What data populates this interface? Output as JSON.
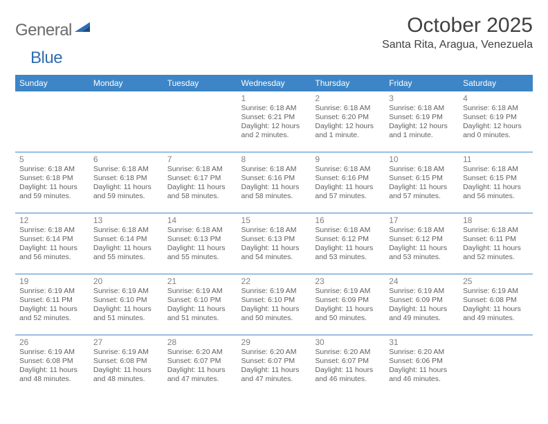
{
  "logo": {
    "text_a": "General",
    "text_b": "Blue",
    "icon_color": "#2f6db0"
  },
  "title": "October 2025",
  "location": "Santa Rita, Aragua, Venezuela",
  "colors": {
    "header_bg": "#3d85c6",
    "header_text": "#ffffff",
    "border": "#3d85c6",
    "daynum": "#808080",
    "body_text": "#606060",
    "title_text": "#404040",
    "logo_gray": "#6a6a6a",
    "logo_blue": "#2f6db0",
    "background": "#ffffff"
  },
  "day_names": [
    "Sunday",
    "Monday",
    "Tuesday",
    "Wednesday",
    "Thursday",
    "Friday",
    "Saturday"
  ],
  "layout": {
    "first_day_col": 3,
    "days_in_month": 31
  },
  "days": {
    "1": {
      "sunrise": "6:18 AM",
      "sunset": "6:21 PM",
      "daylight": "12 hours and 2 minutes."
    },
    "2": {
      "sunrise": "6:18 AM",
      "sunset": "6:20 PM",
      "daylight": "12 hours and 1 minute."
    },
    "3": {
      "sunrise": "6:18 AM",
      "sunset": "6:19 PM",
      "daylight": "12 hours and 1 minute."
    },
    "4": {
      "sunrise": "6:18 AM",
      "sunset": "6:19 PM",
      "daylight": "12 hours and 0 minutes."
    },
    "5": {
      "sunrise": "6:18 AM",
      "sunset": "6:18 PM",
      "daylight": "11 hours and 59 minutes."
    },
    "6": {
      "sunrise": "6:18 AM",
      "sunset": "6:18 PM",
      "daylight": "11 hours and 59 minutes."
    },
    "7": {
      "sunrise": "6:18 AM",
      "sunset": "6:17 PM",
      "daylight": "11 hours and 58 minutes."
    },
    "8": {
      "sunrise": "6:18 AM",
      "sunset": "6:16 PM",
      "daylight": "11 hours and 58 minutes."
    },
    "9": {
      "sunrise": "6:18 AM",
      "sunset": "6:16 PM",
      "daylight": "11 hours and 57 minutes."
    },
    "10": {
      "sunrise": "6:18 AM",
      "sunset": "6:15 PM",
      "daylight": "11 hours and 57 minutes."
    },
    "11": {
      "sunrise": "6:18 AM",
      "sunset": "6:15 PM",
      "daylight": "11 hours and 56 minutes."
    },
    "12": {
      "sunrise": "6:18 AM",
      "sunset": "6:14 PM",
      "daylight": "11 hours and 56 minutes."
    },
    "13": {
      "sunrise": "6:18 AM",
      "sunset": "6:14 PM",
      "daylight": "11 hours and 55 minutes."
    },
    "14": {
      "sunrise": "6:18 AM",
      "sunset": "6:13 PM",
      "daylight": "11 hours and 55 minutes."
    },
    "15": {
      "sunrise": "6:18 AM",
      "sunset": "6:13 PM",
      "daylight": "11 hours and 54 minutes."
    },
    "16": {
      "sunrise": "6:18 AM",
      "sunset": "6:12 PM",
      "daylight": "11 hours and 53 minutes."
    },
    "17": {
      "sunrise": "6:18 AM",
      "sunset": "6:12 PM",
      "daylight": "11 hours and 53 minutes."
    },
    "18": {
      "sunrise": "6:18 AM",
      "sunset": "6:11 PM",
      "daylight": "11 hours and 52 minutes."
    },
    "19": {
      "sunrise": "6:19 AM",
      "sunset": "6:11 PM",
      "daylight": "11 hours and 52 minutes."
    },
    "20": {
      "sunrise": "6:19 AM",
      "sunset": "6:10 PM",
      "daylight": "11 hours and 51 minutes."
    },
    "21": {
      "sunrise": "6:19 AM",
      "sunset": "6:10 PM",
      "daylight": "11 hours and 51 minutes."
    },
    "22": {
      "sunrise": "6:19 AM",
      "sunset": "6:10 PM",
      "daylight": "11 hours and 50 minutes."
    },
    "23": {
      "sunrise": "6:19 AM",
      "sunset": "6:09 PM",
      "daylight": "11 hours and 50 minutes."
    },
    "24": {
      "sunrise": "6:19 AM",
      "sunset": "6:09 PM",
      "daylight": "11 hours and 49 minutes."
    },
    "25": {
      "sunrise": "6:19 AM",
      "sunset": "6:08 PM",
      "daylight": "11 hours and 49 minutes."
    },
    "26": {
      "sunrise": "6:19 AM",
      "sunset": "6:08 PM",
      "daylight": "11 hours and 48 minutes."
    },
    "27": {
      "sunrise": "6:19 AM",
      "sunset": "6:08 PM",
      "daylight": "11 hours and 48 minutes."
    },
    "28": {
      "sunrise": "6:20 AM",
      "sunset": "6:07 PM",
      "daylight": "11 hours and 47 minutes."
    },
    "29": {
      "sunrise": "6:20 AM",
      "sunset": "6:07 PM",
      "daylight": "11 hours and 47 minutes."
    },
    "30": {
      "sunrise": "6:20 AM",
      "sunset": "6:07 PM",
      "daylight": "11 hours and 46 minutes."
    },
    "31": {
      "sunrise": "6:20 AM",
      "sunset": "6:06 PM",
      "daylight": "11 hours and 46 minutes."
    }
  },
  "labels": {
    "sunrise": "Sunrise:",
    "sunset": "Sunset:",
    "daylight": "Daylight:"
  }
}
